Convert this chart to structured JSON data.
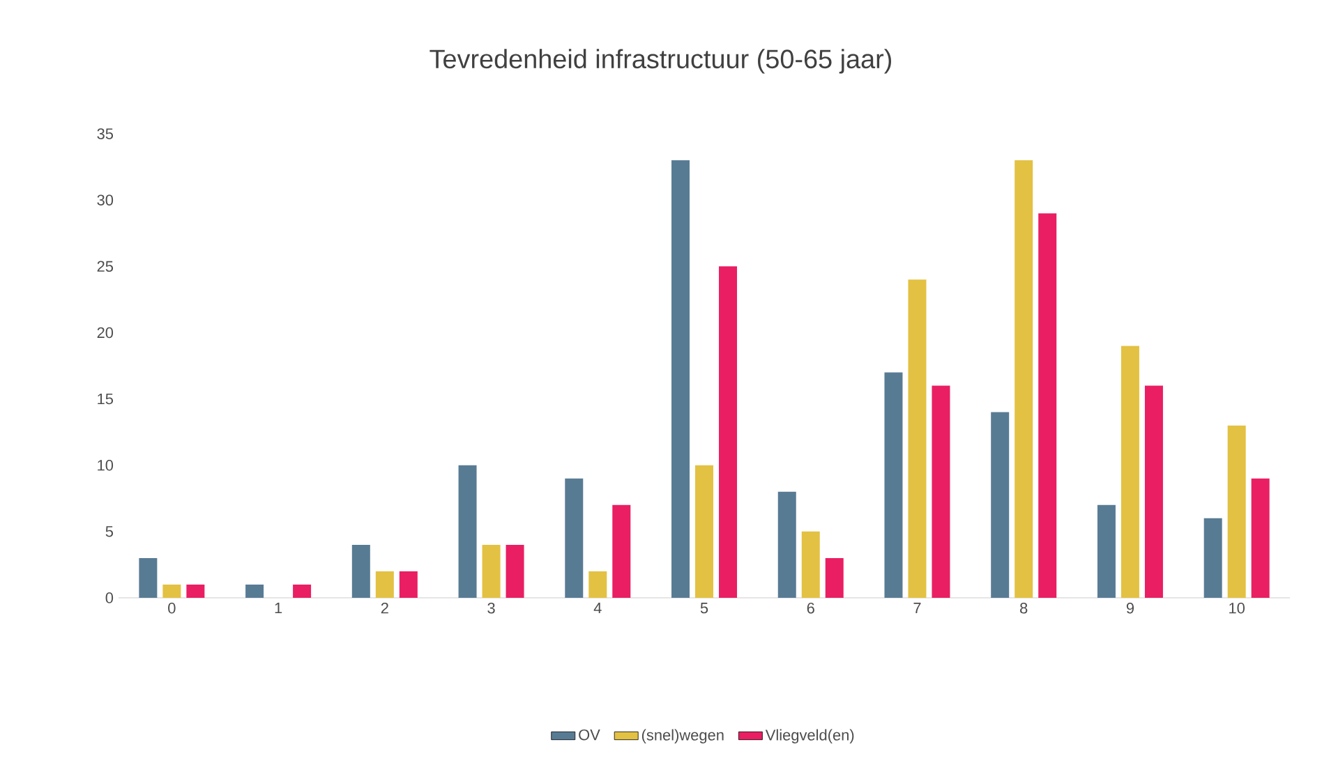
{
  "chart_data": {
    "type": "bar",
    "title": "Tevredenheid infrastructuur (50-65 jaar)",
    "categories": [
      "0",
      "1",
      "2",
      "3",
      "4",
      "5",
      "6",
      "7",
      "8",
      "9",
      "10"
    ],
    "series": [
      {
        "name": "OV",
        "color": "#587b94",
        "values": [
          3,
          1,
          4,
          10,
          9,
          33,
          8,
          17,
          14,
          7,
          6
        ]
      },
      {
        "name": "(snel)wegen",
        "color": "#e3c142",
        "values": [
          1,
          0,
          2,
          4,
          2,
          10,
          5,
          24,
          33,
          19,
          13
        ]
      },
      {
        "name": "Vliegveld(en)",
        "color": "#e91e63",
        "values": [
          1,
          1,
          2,
          4,
          7,
          25,
          3,
          16,
          29,
          16,
          9
        ]
      }
    ],
    "ylim": [
      0,
      35
    ],
    "yticks": [
      0,
      5,
      10,
      15,
      20,
      25,
      30,
      35
    ],
    "legend": "bottom"
  }
}
